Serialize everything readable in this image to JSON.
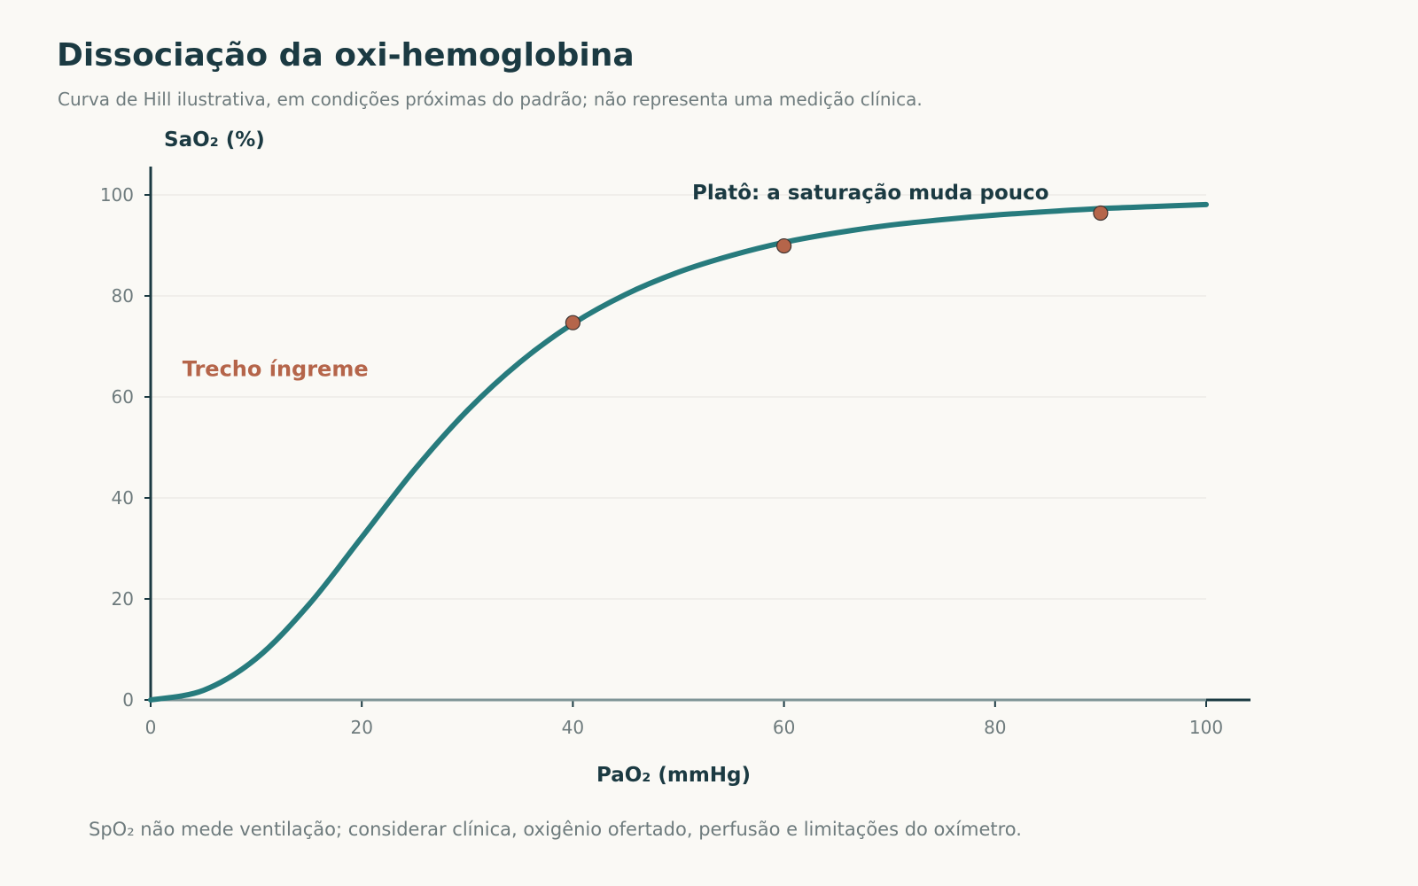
{
  "page": {
    "title": "Dissociação da oxi-hemoglobina",
    "subtitle": "Curva de Hill ilustrativa, em condições próximas do padrão; não representa uma medição clínica.",
    "footnote": "SpO₂ não mede ventilação; considerar clínica, oxigênio ofertado, perfusão e limitações do oxímetro."
  },
  "colors": {
    "background": "#faf9f5",
    "curve": "#277b7d",
    "marker": "#b5654a",
    "axis": "#1b3a42",
    "muted_text": "#6e7b7d",
    "grid": "#ecebe6"
  },
  "chart_data": {
    "type": "line",
    "xlabel": "PaO₂ (mmHg)",
    "ylabel": "SaO₂ (%)",
    "xlim": [
      0,
      100
    ],
    "ylim": [
      0,
      100
    ],
    "xticks": [
      0,
      20,
      40,
      60,
      80,
      100
    ],
    "yticks": [
      0,
      20,
      40,
      60,
      80,
      100
    ],
    "grid": "horizontal",
    "series": [
      {
        "x": [
          0,
          5,
          10,
          15,
          20,
          25,
          30,
          35,
          40,
          45,
          50,
          55,
          60,
          65,
          70,
          75,
          80,
          85,
          90,
          95,
          100
        ],
        "y": [
          0,
          1.9,
          8.2,
          18.9,
          32.2,
          45.6,
          57.3,
          66.9,
          74.5,
          80.3,
          84.7,
          88.0,
          90.6,
          92.5,
          94.0,
          95.1,
          96.0,
          96.7,
          97.3,
          97.7,
          98.1
        ]
      }
    ],
    "points": [
      {
        "x": 40,
        "y": 74.7
      },
      {
        "x": 60,
        "y": 89.9
      },
      {
        "x": 90,
        "y": 96.4
      }
    ],
    "annotations": [
      {
        "text": "Platô: a saturação muda pouco",
        "x": 51.3,
        "y": 100.5
      },
      {
        "text": "Trecho íngreme",
        "x": 3,
        "y": 65
      }
    ]
  }
}
